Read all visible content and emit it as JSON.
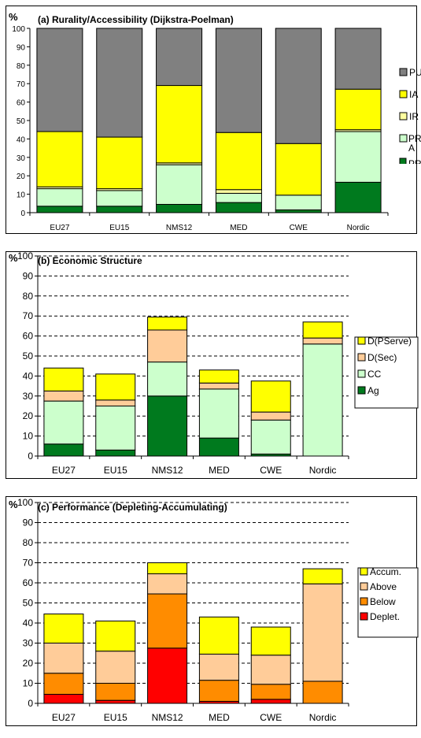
{
  "charts": [
    {
      "id": "a",
      "type": "bar",
      "stacked": true,
      "title": "(a) Rurality/Accessibility (Dijkstra-Poelman)",
      "ylabel": "%",
      "ylim": [
        0,
        100
      ],
      "yticks": [
        "0",
        "10",
        "20",
        "30",
        "40",
        "50",
        "60",
        "70",
        "80",
        "90",
        "100"
      ],
      "grid": false,
      "categories": [
        "EU27",
        "EU15",
        "NMS12",
        "MED",
        "CWE",
        "Nordic"
      ],
      "legend_position": "right",
      "series": [
        {
          "name": "PR",
          "color": "#007a1e",
          "values": [
            3.5,
            3.5,
            4.5,
            5.5,
            1.5,
            16.5
          ]
        },
        {
          "name": "PR A",
          "color": "#ccffcc",
          "values": [
            9.5,
            8.5,
            21.5,
            5,
            8,
            27.5
          ]
        },
        {
          "name": "IR",
          "color": "#ffffa0",
          "values": [
            1,
            1,
            1,
            2,
            0,
            1
          ]
        },
        {
          "name": "IA",
          "color": "#ffff00",
          "values": [
            30,
            28,
            42,
            31,
            28,
            22
          ]
        },
        {
          "name": "PU",
          "color": "#808080",
          "values": [
            56,
            59,
            31,
            56.5,
            62.5,
            33
          ]
        }
      ],
      "legend_labels": [
        "PU",
        "IA",
        "IR",
        "PR A",
        "PR"
      ]
    },
    {
      "id": "b",
      "type": "bar",
      "stacked": true,
      "title": "(b) Economic Structure",
      "ylabel": "%",
      "ylim": [
        0,
        100
      ],
      "yticks": [
        "0",
        "10",
        "20",
        "30",
        "40",
        "50",
        "60",
        "70",
        "80",
        "90",
        "100"
      ],
      "grid": true,
      "categories": [
        "EU27",
        "EU15",
        "NMS12",
        "MED",
        "CWE",
        "Nordic"
      ],
      "legend_position": "right",
      "series": [
        {
          "name": "Ag",
          "color": "#007a1e",
          "values": [
            6,
            3,
            30,
            9,
            1,
            0
          ]
        },
        {
          "name": "CC",
          "color": "#ccffcc",
          "values": [
            21.5,
            22,
            17,
            24.5,
            17,
            56
          ]
        },
        {
          "name": "D(Sec)",
          "color": "#ffcc99",
          "values": [
            5,
            3,
            16,
            3,
            4,
            3
          ]
        },
        {
          "name": "D(PServe)",
          "color": "#ffff00",
          "values": [
            11.5,
            13,
            6.5,
            6.5,
            15.5,
            8
          ]
        }
      ],
      "legend_labels": [
        "D(PServe)",
        "D(Sec)",
        "CC",
        "Ag"
      ]
    },
    {
      "id": "c",
      "type": "bar",
      "stacked": true,
      "title": "(c) Performance (Depleting-Accumulating)",
      "ylabel": "%",
      "ylim": [
        0,
        100
      ],
      "yticks": [
        "0",
        "10",
        "20",
        "30",
        "40",
        "50",
        "60",
        "70",
        "80",
        "90",
        "100"
      ],
      "grid": true,
      "categories": [
        "EU27",
        "EU15",
        "NMS12",
        "MED",
        "CWE",
        "Nordic"
      ],
      "legend_position": "right",
      "series": [
        {
          "name": "Deplet.",
          "color": "#ff0000",
          "values": [
            4.5,
            1.5,
            27.5,
            1,
            2,
            0
          ]
        },
        {
          "name": "Below",
          "color": "#ff8c00",
          "values": [
            10.5,
            8.5,
            27,
            10.5,
            7.5,
            11
          ]
        },
        {
          "name": "Above",
          "color": "#ffcc99",
          "values": [
            15,
            16,
            10,
            13,
            14.5,
            48.5
          ]
        },
        {
          "name": "Accum.",
          "color": "#ffff00",
          "values": [
            14.5,
            15,
            5.5,
            18.5,
            14,
            7.5
          ]
        }
      ],
      "legend_labels": [
        "Accum.",
        "Above",
        "Below",
        "Deplet."
      ]
    }
  ]
}
